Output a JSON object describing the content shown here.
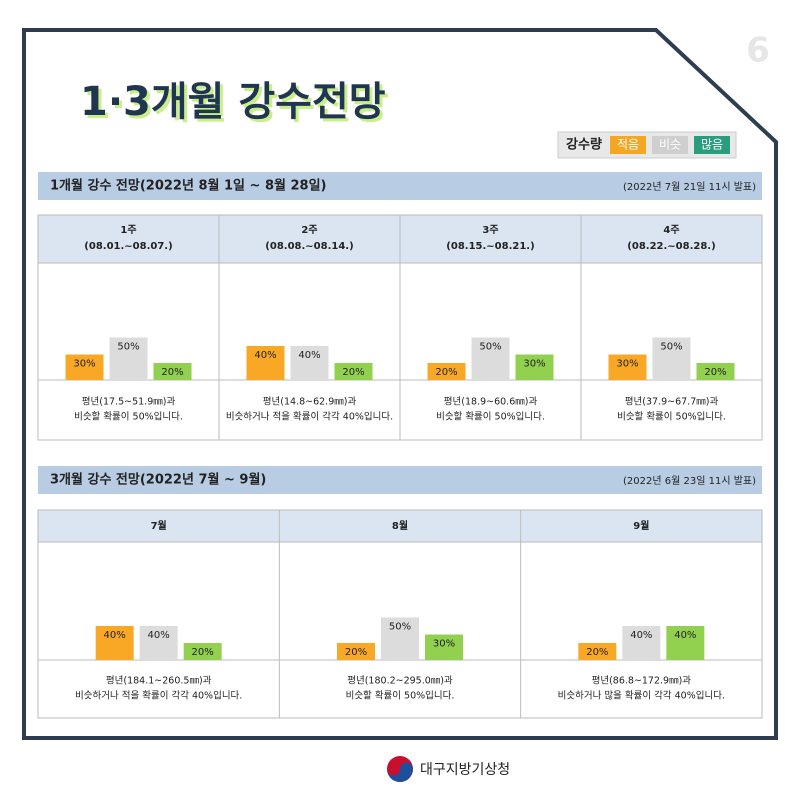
{
  "page_number": "6",
  "title": "1·3개월 강수전망",
  "legend": {
    "title": "강수량",
    "items": [
      {
        "name": "적음",
        "color": "#f5a623"
      },
      {
        "name": "비슷",
        "color": "#cfcfcf"
      },
      {
        "name": "많음",
        "color": "#2a9d7f"
      }
    ]
  },
  "bar_colors": [
    "#f9a825",
    "#dcdcdc",
    "#92d050"
  ],
  "sections": [
    {
      "title": "1개월 강수 전망(2022년 8월 1일 ~ 8월 28일)",
      "note": "(2022년 7월 21일 11시 발표)"
    },
    {
      "title": "3개월 강수 전망(2022년 7월 ~ 9월)",
      "note": "(2022년 6월 23일 11시 발표)"
    }
  ],
  "chart_data": [
    {
      "type": "bar",
      "title": "1주",
      "subtitle": "(08.01.~08.07.)",
      "values": [
        30,
        50,
        20
      ],
      "value_labels": [
        "30%",
        "50%",
        "20%"
      ],
      "caption": [
        "평년(17.5~51.9㎜)과",
        "비슷할 확률이 50%입니다."
      ]
    },
    {
      "type": "bar",
      "title": "2주",
      "subtitle": "(08.08.~08.14.)",
      "values": [
        40,
        40,
        20
      ],
      "value_labels": [
        "40%",
        "40%",
        "20%"
      ],
      "caption": [
        "평년(14.8~62.9㎜)과",
        "비슷하거나 적을 확률이 각각 40%입니다."
      ]
    },
    {
      "type": "bar",
      "title": "3주",
      "subtitle": "(08.15.~08.21.)",
      "values": [
        20,
        50,
        30
      ],
      "value_labels": [
        "20%",
        "50%",
        "30%"
      ],
      "caption": [
        "평년(18.9~60.6㎜)과",
        "비슷할 확률이 50%입니다."
      ]
    },
    {
      "type": "bar",
      "title": "4주",
      "subtitle": "(08.22.~08.28.)",
      "values": [
        30,
        50,
        20
      ],
      "value_labels": [
        "30%",
        "50%",
        "20%"
      ],
      "caption": [
        "평년(37.9~67.7㎜)과",
        "비슷할 확률이 50%입니다."
      ]
    },
    {
      "type": "bar",
      "title": "7월",
      "values": [
        40,
        40,
        20
      ],
      "value_labels": [
        "40%",
        "40%",
        "20%"
      ],
      "caption": [
        "평년(184.1~260.5㎜)과",
        "비슷하거나 적을 확률이 각각 40%입니다."
      ]
    },
    {
      "type": "bar",
      "title": "8월",
      "values": [
        20,
        50,
        30
      ],
      "value_labels": [
        "20%",
        "50%",
        "30%"
      ],
      "caption": [
        "평년(180.2~295.0㎜)과",
        "비슷할 확률이 50%입니다."
      ]
    },
    {
      "type": "bar",
      "title": "9월",
      "values": [
        20,
        40,
        40
      ],
      "value_labels": [
        "20%",
        "40%",
        "40%"
      ],
      "caption": [
        "평년(86.8~172.9㎜)과",
        "비슷하거나 많을 확률이 각각 40%입니다."
      ]
    }
  ],
  "footer": "대구지방기상청"
}
